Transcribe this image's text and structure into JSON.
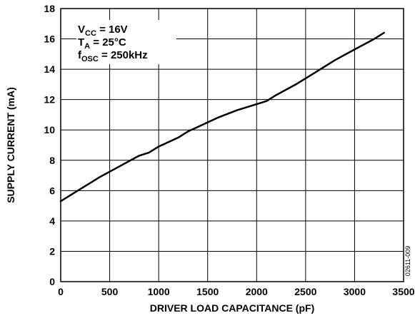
{
  "chart_data": {
    "type": "line",
    "xlabel": "DRIVER LOAD CAPACITANCE (pF)",
    "ylabel": "SUPPLY CURRENT (mA)",
    "xlim": [
      0,
      3500
    ],
    "ylim": [
      0,
      18
    ],
    "x_ticks": [
      "0",
      "500",
      "1000",
      "1500",
      "2000",
      "2500",
      "3000",
      "3500"
    ],
    "y_ticks": [
      "0",
      "2",
      "4",
      "6",
      "8",
      "10",
      "12",
      "14",
      "16",
      "18"
    ],
    "grid": true,
    "annotations": [
      {
        "main": "V",
        "sub": "CC",
        "rest": " = 16V"
      },
      {
        "main": "T",
        "sub": "A",
        "rest": " = 25°C"
      },
      {
        "main": "f",
        "sub": "OSC",
        "rest": " = 250kHz"
      }
    ],
    "figure_id": "02611-009",
    "series": [
      {
        "x": [
          0,
          200,
          400,
          600,
          800,
          900,
          1000,
          1200,
          1300,
          1400,
          1600,
          1800,
          2000,
          2100,
          2200,
          2400,
          2600,
          2800,
          3000,
          3200,
          3300
        ],
        "y": [
          5.3,
          6.1,
          6.9,
          7.6,
          8.3,
          8.5,
          8.9,
          9.5,
          9.9,
          10.2,
          10.8,
          11.3,
          11.7,
          11.9,
          12.3,
          13.0,
          13.8,
          14.6,
          15.3,
          16.0,
          16.4
        ]
      }
    ]
  }
}
